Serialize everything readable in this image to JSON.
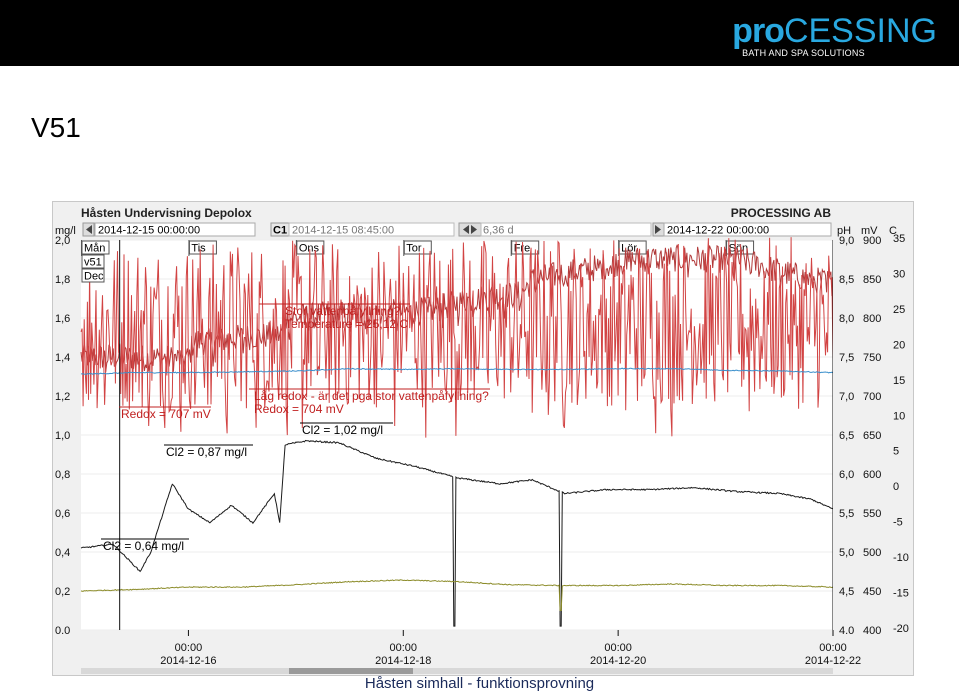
{
  "header": {
    "logo_pro": "pro",
    "logo_rest": "CESSING",
    "logo_sub": "BATH AND SPA SOLUTIONS"
  },
  "slide_title": "V51",
  "footer": "Håsten simhall - funktionsprovning",
  "chart_data": {
    "type": "line",
    "title": "Håsten Undervisning Depolox",
    "company": "PROCESSING AB",
    "toolbar": {
      "start": "2014-12-15 00:00:00",
      "cursor_label": "C1",
      "cursor_time": "2014-12-15 08:45:00",
      "span": "6,36 d",
      "end": "2014-12-22 00:00:00"
    },
    "week_label": "v51",
    "month_label": "Dec",
    "days": [
      "Mån",
      "Tis",
      "Ons",
      "Tor",
      "Fre",
      "Lör",
      "Sön"
    ],
    "xlim": [
      0,
      7
    ],
    "x_ticks": [
      {
        "pos": 1,
        "time": "00:00",
        "date": "2014-12-16"
      },
      {
        "pos": 3,
        "time": "00:00",
        "date": "2014-12-18"
      },
      {
        "pos": 5,
        "time": "00:00",
        "date": "2014-12-20"
      },
      {
        "pos": 7,
        "time": "00:00",
        "date": "2014-12-22"
      }
    ],
    "axes": {
      "mgl": {
        "label": "mg/l",
        "range": [
          0.0,
          2.0
        ],
        "ticks": [
          "0.0",
          "0,2",
          "0,4",
          "0,6",
          "0,8",
          "1,0",
          "1,2",
          "1,4",
          "1,6",
          "1,8",
          "2,0"
        ]
      },
      "ph": {
        "label": "pH",
        "range": [
          4.0,
          9.0
        ],
        "ticks": [
          "4.0",
          "4,5",
          "5,0",
          "5,5",
          "6,0",
          "6,5",
          "7,0",
          "7,5",
          "8,0",
          "8,5",
          "9,0"
        ]
      },
      "mv": {
        "label": "mV",
        "range": [
          400,
          900
        ],
        "ticks": [
          "400",
          "450",
          "500",
          "550",
          "600",
          "650",
          "700",
          "750",
          "800",
          "850",
          "900"
        ]
      },
      "c": {
        "label": "C",
        "range": [
          -20,
          35
        ],
        "ticks": [
          "-20",
          "-15",
          "-10",
          "-5",
          "0",
          "5",
          "10",
          "15",
          "20",
          "25",
          "30",
          "35"
        ]
      }
    },
    "series": [
      {
        "color": "#b23a3a",
        "axis": "c",
        "points": [
          [
            0,
            18.6
          ],
          [
            0.5,
            18.4
          ],
          [
            0.85,
            18.3
          ],
          [
            1.0,
            18.3
          ],
          [
            1.05,
            20.8
          ],
          [
            1.2,
            20.6
          ],
          [
            1.5,
            21.3
          ],
          [
            1.7,
            21.5
          ],
          [
            1.86,
            21.6
          ],
          [
            1.9,
            23.9
          ],
          [
            2.2,
            24.4
          ],
          [
            2.6,
            24.6
          ],
          [
            3.0,
            24.8
          ],
          [
            3.3,
            25.2
          ],
          [
            3.6,
            26.6
          ],
          [
            4.1,
            27.4
          ],
          [
            4.2,
            29.4
          ],
          [
            4.4,
            30.0
          ],
          [
            4.7,
            30.8
          ],
          [
            4.9,
            31.4
          ],
          [
            5.1,
            32.2
          ],
          [
            5.3,
            32.4
          ],
          [
            5.6,
            32.4
          ],
          [
            5.9,
            32.3
          ],
          [
            6.2,
            32.0
          ],
          [
            6.5,
            30.6
          ],
          [
            6.8,
            29.4
          ],
          [
            7.0,
            29.0
          ]
        ]
      },
      {
        "color": "#d24444",
        "axis": "mv",
        "points": [
          [
            0,
            788
          ],
          [
            0.4,
            790
          ],
          [
            0.8,
            790
          ],
          [
            1.0,
            788
          ],
          [
            1.5,
            790
          ],
          [
            2.0,
            790
          ],
          [
            2.5,
            792
          ],
          [
            3.0,
            795
          ],
          [
            3.5,
            795
          ],
          [
            4.0,
            796
          ],
          [
            4.5,
            797
          ],
          [
            5.0,
            796
          ],
          [
            5.5,
            797
          ],
          [
            6.0,
            796
          ],
          [
            6.5,
            795
          ],
          [
            7.0,
            790
          ]
        ]
      },
      {
        "color": "#3a8fcc",
        "axis": "ph",
        "points": [
          [
            0,
            7.28
          ],
          [
            0.5,
            7.3
          ],
          [
            1.0,
            7.3
          ],
          [
            1.5,
            7.31
          ],
          [
            2.0,
            7.32
          ],
          [
            2.5,
            7.35
          ],
          [
            3.0,
            7.34
          ],
          [
            3.5,
            7.35
          ],
          [
            4.0,
            7.34
          ],
          [
            4.5,
            7.34
          ],
          [
            5.0,
            7.35
          ],
          [
            5.5,
            7.35
          ],
          [
            6.0,
            7.33
          ],
          [
            6.5,
            7.32
          ],
          [
            7.0,
            7.3
          ]
        ]
      },
      {
        "color": "#1a1a1a",
        "axis": "mgl",
        "points": [
          [
            0,
            0.42
          ],
          [
            0.3,
            0.44
          ],
          [
            0.55,
            0.3
          ],
          [
            0.65,
            0.4
          ],
          [
            0.85,
            0.75
          ],
          [
            1.0,
            0.62
          ],
          [
            1.2,
            0.55
          ],
          [
            1.4,
            0.64
          ],
          [
            1.6,
            0.55
          ],
          [
            1.8,
            0.7
          ],
          [
            1.85,
            0.55
          ],
          [
            1.9,
            0.95
          ],
          [
            2.1,
            0.97
          ],
          [
            2.4,
            0.96
          ],
          [
            2.75,
            0.88
          ],
          [
            3.1,
            0.84
          ],
          [
            3.5,
            0.78
          ],
          [
            3.9,
            0.75
          ],
          [
            4.2,
            0.77
          ],
          [
            4.5,
            0.7
          ],
          [
            4.9,
            0.72
          ],
          [
            5.3,
            0.72
          ],
          [
            5.7,
            0.73
          ],
          [
            6.1,
            0.71
          ],
          [
            6.5,
            0.7
          ],
          [
            6.8,
            0.67
          ],
          [
            7.0,
            0.62
          ]
        ]
      },
      {
        "color": "#8c8c2a",
        "axis": "ph",
        "points": [
          [
            0,
            4.5
          ],
          [
            0.5,
            4.52
          ],
          [
            1.0,
            4.55
          ],
          [
            1.5,
            4.55
          ],
          [
            2.0,
            4.58
          ],
          [
            2.5,
            4.62
          ],
          [
            3.0,
            4.64
          ],
          [
            3.5,
            4.62
          ],
          [
            4.0,
            4.58
          ],
          [
            4.5,
            4.57
          ],
          [
            5.0,
            4.57
          ],
          [
            5.5,
            4.59
          ],
          [
            6.0,
            4.57
          ],
          [
            6.5,
            4.57
          ],
          [
            7.0,
            4.55
          ]
        ]
      }
    ],
    "cursor_lines": [
      0.36,
      7.0
    ],
    "annotations": [
      {
        "lines": [
          "Stor vattenpåfyllning?",
          "Temperature = 25,12 C"
        ],
        "color": "#c02020"
      },
      {
        "lines": [
          "Låg redox - är det pga stor vattenpåfyllning?",
          "Redox = 704 mV"
        ],
        "color": "#c02020"
      },
      {
        "lines": [
          "Redox = 707 mV"
        ],
        "color": "#c02020"
      },
      {
        "lines": [
          "Cl2 = 1,02 mg/l"
        ],
        "color": "#000000"
      },
      {
        "lines": [
          "Cl2 = 0,87 mg/l"
        ],
        "color": "#000000"
      },
      {
        "lines": [
          "Cl2 = 0,64 mg/l"
        ],
        "color": "#000000"
      }
    ]
  }
}
